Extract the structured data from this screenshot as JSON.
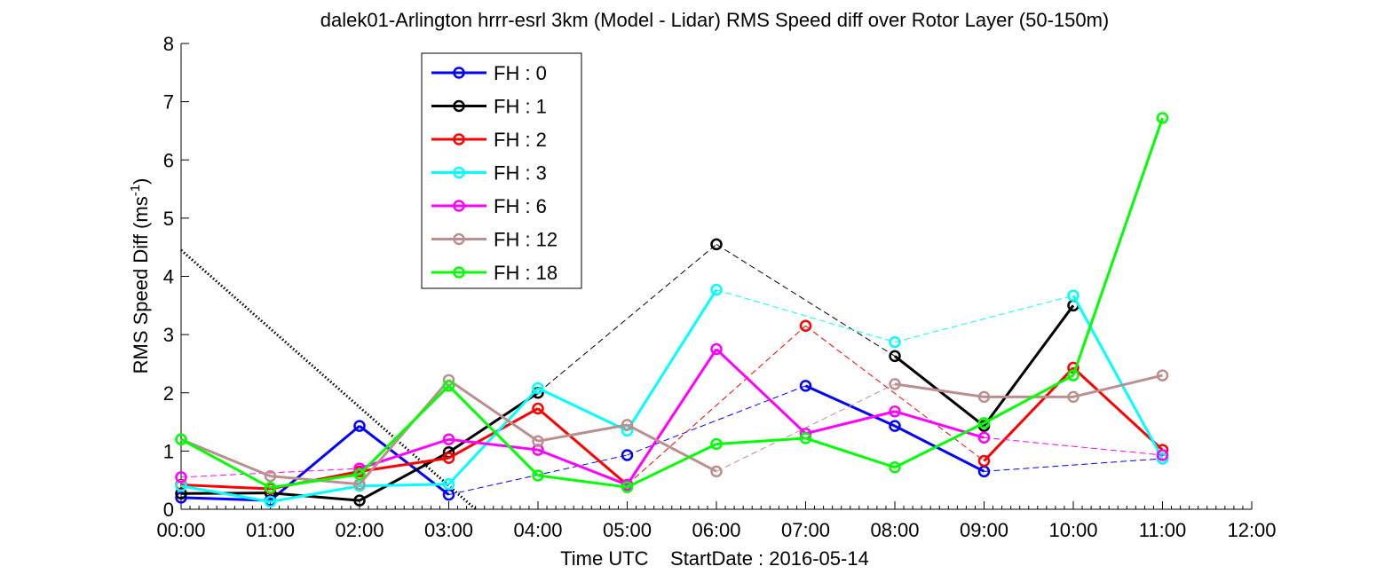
{
  "chart_data": {
    "type": "line",
    "title": "dalek01-Arlington hrrr-esrl 3km (Model - Lidar) RMS Speed diff over Rotor Layer (50-150m)",
    "xlabel": "Time UTC    StartDate : 2016-05-14",
    "ylabel_main": "RMS Speed Diff (ms",
    "ylabel_sup": "-1",
    "ylabel_end": ")",
    "xlim": [
      0,
      12
    ],
    "ylim": [
      0,
      8
    ],
    "x_ticks": [
      0,
      1,
      2,
      3,
      4,
      5,
      6,
      7,
      8,
      9,
      10,
      11,
      12
    ],
    "x_tick_labels": [
      "00:00",
      "01:00",
      "02:00",
      "03:00",
      "04:00",
      "05:00",
      "06:00",
      "07:00",
      "08:00",
      "09:00",
      "10:00",
      "11:00",
      "12:00"
    ],
    "y_ticks": [
      0,
      1,
      2,
      3,
      4,
      5,
      6,
      7,
      8
    ],
    "y_tick_labels": [
      "0",
      "1",
      "2",
      "3",
      "4",
      "5",
      "6",
      "7",
      "8"
    ],
    "legend_position": "top-left",
    "grid": false,
    "series": [
      {
        "name": "FH : 0",
        "color": "#0000ff",
        "points": [
          [
            0,
            0.2
          ],
          [
            1,
            0.15
          ],
          [
            2,
            1.43
          ],
          [
            3,
            0.25
          ],
          [
            5,
            0.93
          ],
          [
            7,
            2.12
          ],
          [
            8,
            1.43
          ],
          [
            9,
            0.65
          ],
          [
            11,
            0.87
          ]
        ]
      },
      {
        "name": "FH : 1",
        "color": "#000000",
        "points": [
          [
            0,
            0.27
          ],
          [
            1,
            0.28
          ],
          [
            2,
            0.15
          ],
          [
            3,
            0.98
          ],
          [
            4,
            2.0
          ],
          [
            6,
            4.55
          ],
          [
            8,
            2.63
          ],
          [
            9,
            1.43
          ],
          [
            10,
            3.5
          ]
        ]
      },
      {
        "name": "FH : 2",
        "color": "#ff0000",
        "points": [
          [
            0,
            0.42
          ],
          [
            1,
            0.35
          ],
          [
            2,
            0.65
          ],
          [
            3,
            0.88
          ],
          [
            4,
            1.73
          ],
          [
            5,
            0.42
          ],
          [
            7,
            3.15
          ],
          [
            9,
            0.83
          ],
          [
            10,
            2.43
          ],
          [
            11,
            1.02
          ]
        ]
      },
      {
        "name": "FH : 3",
        "color": "#00ffff",
        "points": [
          [
            0,
            0.4
          ],
          [
            1,
            0.13
          ],
          [
            2,
            0.4
          ],
          [
            3,
            0.43
          ],
          [
            4,
            2.08
          ],
          [
            5,
            1.35
          ],
          [
            6,
            3.77
          ],
          [
            8,
            2.87
          ],
          [
            10,
            3.67
          ],
          [
            11,
            0.87
          ]
        ]
      },
      {
        "name": "FH : 6",
        "color": "#ff00ff",
        "points": [
          [
            0,
            0.55
          ],
          [
            2,
            0.7
          ],
          [
            3,
            1.2
          ],
          [
            4,
            1.02
          ],
          [
            5,
            0.42
          ],
          [
            6,
            2.75
          ],
          [
            7,
            1.3
          ],
          [
            8,
            1.68
          ],
          [
            9,
            1.23
          ],
          [
            11,
            0.93
          ]
        ]
      },
      {
        "name": "FH : 12",
        "color": "#bc8f8f",
        "points": [
          [
            0,
            1.2
          ],
          [
            1,
            0.57
          ],
          [
            2,
            0.43
          ],
          [
            3,
            2.22
          ],
          [
            4,
            1.17
          ],
          [
            5,
            1.45
          ],
          [
            6,
            0.65
          ],
          [
            8,
            2.15
          ],
          [
            9,
            1.93
          ],
          [
            10,
            1.93
          ],
          [
            11,
            2.3
          ]
        ]
      },
      {
        "name": "FH : 18",
        "color": "#00ff00",
        "points": [
          [
            0,
            1.2
          ],
          [
            1,
            0.37
          ],
          [
            2,
            0.6
          ],
          [
            3,
            2.12
          ],
          [
            4,
            0.58
          ],
          [
            5,
            0.38
          ],
          [
            6,
            1.12
          ],
          [
            7,
            1.22
          ],
          [
            8,
            0.72
          ],
          [
            9,
            1.48
          ],
          [
            10,
            2.3
          ],
          [
            11,
            6.72
          ]
        ]
      }
    ],
    "reference_line": {
      "color": "#000000",
      "points": [
        [
          0,
          4.45
        ],
        [
          3.3,
          0
        ]
      ]
    }
  }
}
